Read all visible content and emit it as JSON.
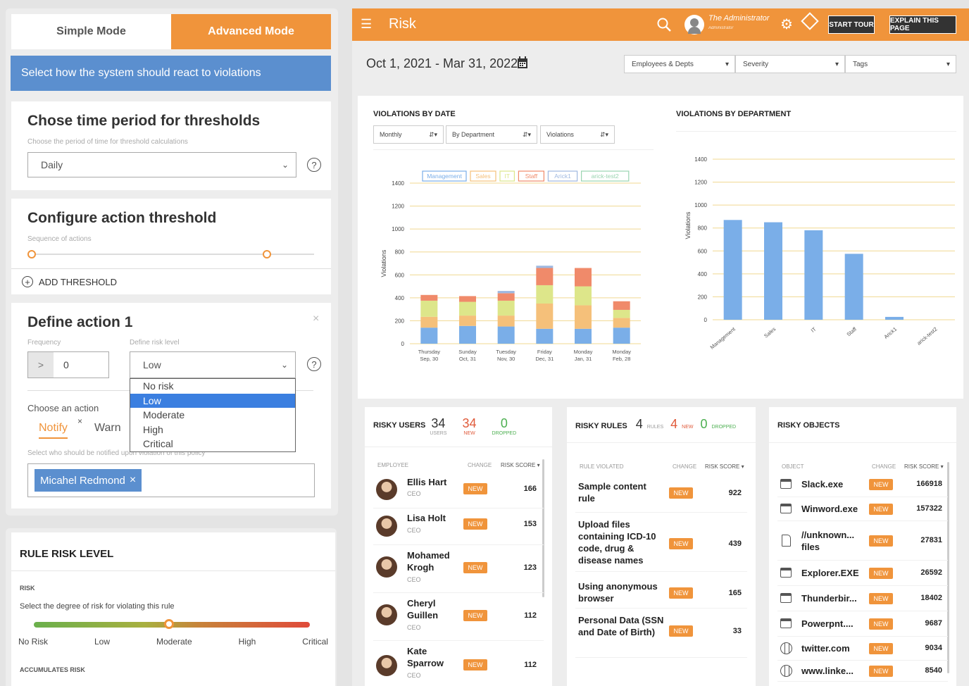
{
  "left": {
    "mode_simple": "Simple Mode",
    "mode_advanced": "Advanced Mode",
    "banner": "Select how the system should react to violations",
    "time": {
      "title": "Chose time period for thresholds",
      "subtitle": "Choose the period of time for threshold calculations",
      "value": "Daily"
    },
    "threshold": {
      "title": "Configure action threshold",
      "subtitle": "Sequence of actions",
      "add_label": "ADD THRESHOLD"
    },
    "action": {
      "title": "Define action 1",
      "frequency_label": "Frequency",
      "frequency_op": ">",
      "frequency_value": "0",
      "risk_label": "Define risk level",
      "risk_value": "Low",
      "risk_options": [
        "No risk",
        "Low",
        "Moderate",
        "High",
        "Critical"
      ],
      "choose_label": "Choose an action",
      "action_notify": "Notify",
      "action_warn": "Warn",
      "notify_sub": "Select who should be notified upon violation of this policy",
      "recipient": "Micahel Redmond"
    },
    "rule_risk": {
      "title": "RULE RISK LEVEL",
      "risk_heading": "RISK",
      "risk_desc": "Select the degree of risk for violating this rule",
      "levels": [
        "No Risk",
        "Low",
        "Moderate",
        "High",
        "Critical"
      ],
      "selected_level": 0.49,
      "accumulates": "ACCUMULATES RISK"
    }
  },
  "right": {
    "title": "Risk",
    "user_name": "The Administrator",
    "user_role": "Administrator",
    "start_tour": "START TOUR",
    "explain": "EXPLAIN THIS PAGE",
    "date_range": "Oct 1, 2021 - Mar 31, 2022",
    "filters": [
      "Employees & Depts",
      "Severity",
      "Tags"
    ]
  },
  "chart_data": [
    {
      "type": "bar",
      "title": "VIOLATIONS BY DATE",
      "controls": [
        "Monthly",
        "By Department",
        "Violations"
      ],
      "ylabel": "Violations",
      "ylim": [
        0,
        1400
      ],
      "yticks": [
        0,
        200,
        400,
        600,
        800,
        1000,
        1200,
        1400
      ],
      "categories": [
        [
          "Thursday",
          "Sep, 30"
        ],
        [
          "Sunday",
          "Oct, 31"
        ],
        [
          "Tuesday",
          "Nov, 30"
        ],
        [
          "Friday",
          "Dec, 31"
        ],
        [
          "Monday",
          "Jan, 31"
        ],
        [
          "Monday",
          "Feb, 28"
        ]
      ],
      "stacked": true,
      "legend": "top",
      "series": [
        {
          "name": "Management",
          "color": "#7aaee8",
          "values": [
            140,
            155,
            150,
            130,
            130,
            140
          ]
        },
        {
          "name": "Sales",
          "color": "#f5c07a",
          "values": [
            95,
            90,
            95,
            220,
            205,
            85
          ]
        },
        {
          "name": "IT",
          "color": "#dde68a",
          "values": [
            140,
            120,
            130,
            160,
            165,
            70
          ]
        },
        {
          "name": "Staff",
          "color": "#f08a6a",
          "values": [
            50,
            50,
            65,
            150,
            160,
            75
          ]
        },
        {
          "name": "Arick1",
          "color": "#9fb8e0",
          "values": [
            0,
            0,
            20,
            20,
            0,
            0
          ]
        },
        {
          "name": "arick-test2",
          "color": "#9ad4b0",
          "values": [
            0,
            0,
            0,
            0,
            0,
            0
          ]
        }
      ]
    },
    {
      "type": "bar",
      "title": "VIOLATIONS BY DEPARTMENT",
      "ylabel": "Violations",
      "ylim": [
        0,
        1400
      ],
      "yticks": [
        0,
        200,
        400,
        600,
        800,
        1000,
        1200,
        1400
      ],
      "categories": [
        "Management",
        "Sales",
        "IT",
        "Staff",
        "Arick1",
        "arick-test2"
      ],
      "values": [
        870,
        850,
        780,
        575,
        25,
        0
      ],
      "color": "#7aaee8"
    }
  ],
  "risky_users": {
    "title": "RISKY USERS",
    "total": "34",
    "total_label": "USERS",
    "new": "34",
    "new_label": "NEW",
    "dropped": "0",
    "dropped_label": "DROPPED",
    "col_employee": "EMPLOYEE",
    "col_change": "CHANGE",
    "col_score": "RISK SCORE ▾",
    "rows": [
      {
        "name": "Ellis Hart",
        "role": "CEO",
        "badge": "NEW",
        "score": "166"
      },
      {
        "name": "Lisa Holt",
        "role": "CEO",
        "badge": "NEW",
        "score": "153"
      },
      {
        "name": "Mohamed Krogh",
        "role": "CEO",
        "badge": "NEW",
        "score": "123"
      },
      {
        "name": "Cheryl Guillen",
        "role": "CEO",
        "badge": "NEW",
        "score": "112"
      },
      {
        "name": "Kate Sparrow",
        "role": "CEO",
        "badge": "NEW",
        "score": "112"
      }
    ]
  },
  "risky_rules": {
    "title": "RISKY RULES",
    "total": "4",
    "total_label": "RULES",
    "new": "4",
    "new_label": "NEW",
    "dropped": "0",
    "dropped_label": "DROPPED",
    "col_rule": "RULE VIOLATED",
    "col_change": "CHANGE",
    "col_score": "RISK SCORE ▾",
    "rows": [
      {
        "name": "Sample content rule",
        "badge": "NEW",
        "score": "922"
      },
      {
        "name": "Upload files containing ICD-10 code, drug & disease names",
        "badge": "NEW",
        "score": "439"
      },
      {
        "name": "Using anonymous browser",
        "badge": "NEW",
        "score": "165"
      },
      {
        "name": "Personal Data (SSN and Date of Birth)",
        "badge": "NEW",
        "score": "33"
      }
    ]
  },
  "risky_objects": {
    "title": "RISKY OBJECTS",
    "col_object": "OBJECT",
    "col_change": "CHANGE",
    "col_score": "RISK SCORE ▾",
    "rows": [
      {
        "name": "Slack.exe",
        "icon": "app-window-icon",
        "badge": "NEW",
        "score": "166918"
      },
      {
        "name": "Winword.exe",
        "icon": "app-window-icon",
        "badge": "NEW",
        "score": "157322"
      },
      {
        "name": "//unknown... files",
        "icon": "file-icon",
        "badge": "NEW",
        "score": "27831"
      },
      {
        "name": "Explorer.EXE",
        "icon": "app-window-icon",
        "badge": "NEW",
        "score": "26592"
      },
      {
        "name": "Thunderbir...",
        "icon": "app-window-icon",
        "badge": "NEW",
        "score": "18402"
      },
      {
        "name": "Powerpnt....",
        "icon": "app-window-icon",
        "badge": "NEW",
        "score": "9687"
      },
      {
        "name": "twitter.com",
        "icon": "globe-icon",
        "badge": "NEW",
        "score": "9034"
      },
      {
        "name": "www.linke...",
        "icon": "globe-icon",
        "badge": "NEW",
        "score": "8540"
      }
    ]
  }
}
